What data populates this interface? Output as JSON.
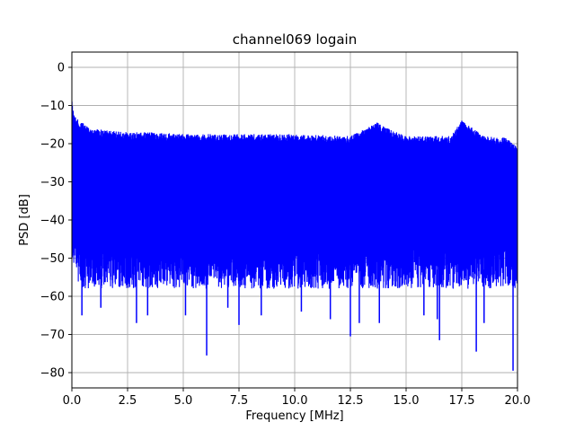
{
  "chart_data": {
    "type": "line",
    "title": "channel069 logain",
    "xlabel": "Frequency [MHz]",
    "ylabel": "PSD [dB]",
    "xlim": [
      0,
      20
    ],
    "ylim": [
      -84,
      4
    ],
    "grid": true,
    "x_ticks": [
      0.0,
      2.5,
      5.0,
      7.5,
      10.0,
      12.5,
      15.0,
      17.5,
      20.0
    ],
    "x_tick_labels": [
      "0.0",
      "2.5",
      "5.0",
      "7.5",
      "10.0",
      "12.5",
      "15.0",
      "17.5",
      "20.0"
    ],
    "y_ticks": [
      0,
      -10,
      -20,
      -30,
      -40,
      -50,
      -60,
      -70,
      -80
    ],
    "y_tick_labels": [
      "0",
      "−10",
      "−20",
      "−30",
      "−40",
      "−50",
      "−60",
      "−70",
      "−80"
    ],
    "series": [
      {
        "color": "#0000ff",
        "envelope": {
          "x": [
            0.0,
            0.1,
            0.3,
            0.6,
            1.0,
            1.5,
            2.5,
            3.5,
            5.0,
            7.5,
            10.0,
            12.5,
            13.7,
            15.0,
            17.0,
            17.5,
            18.5,
            19.5,
            20.0
          ],
          "upper": [
            -9,
            -12,
            -14,
            -15,
            -16,
            -16.5,
            -17,
            -17,
            -17.5,
            -17.5,
            -17.5,
            -18,
            -14.5,
            -18,
            -18,
            -14,
            -18,
            -18.5,
            -21
          ],
          "lower": [
            -45,
            -55,
            -58,
            -60,
            -58,
            -58,
            -58,
            -58,
            -58,
            -58,
            -58,
            -58,
            -58,
            -58,
            -58,
            -58,
            -58,
            -58,
            -58
          ]
        },
        "noise_band": {
          "x": [
            0.0,
            0.1,
            0.3,
            0.6,
            1.0,
            1.5,
            2.5,
            5.0,
            10.0,
            15.0,
            20.0
          ],
          "lower": [
            -45,
            -50,
            -52,
            -53,
            -53,
            -53,
            -53,
            -53,
            -53,
            -53,
            -53
          ]
        },
        "deep_dips": [
          {
            "x": 0.45,
            "y": -65
          },
          {
            "x": 1.3,
            "y": -63
          },
          {
            "x": 2.9,
            "y": -67
          },
          {
            "x": 3.4,
            "y": -65
          },
          {
            "x": 5.1,
            "y": -65
          },
          {
            "x": 6.05,
            "y": -75.5
          },
          {
            "x": 7.0,
            "y": -63
          },
          {
            "x": 7.5,
            "y": -67.5
          },
          {
            "x": 8.5,
            "y": -65
          },
          {
            "x": 10.3,
            "y": -64
          },
          {
            "x": 11.6,
            "y": -66
          },
          {
            "x": 12.5,
            "y": -70.5
          },
          {
            "x": 12.9,
            "y": -67
          },
          {
            "x": 13.8,
            "y": -67
          },
          {
            "x": 15.8,
            "y": -65
          },
          {
            "x": 16.4,
            "y": -66
          },
          {
            "x": 16.5,
            "y": -71.5
          },
          {
            "x": 18.15,
            "y": -74.5
          },
          {
            "x": 18.5,
            "y": -67
          },
          {
            "x": 19.8,
            "y": -79.5
          }
        ]
      }
    ]
  }
}
